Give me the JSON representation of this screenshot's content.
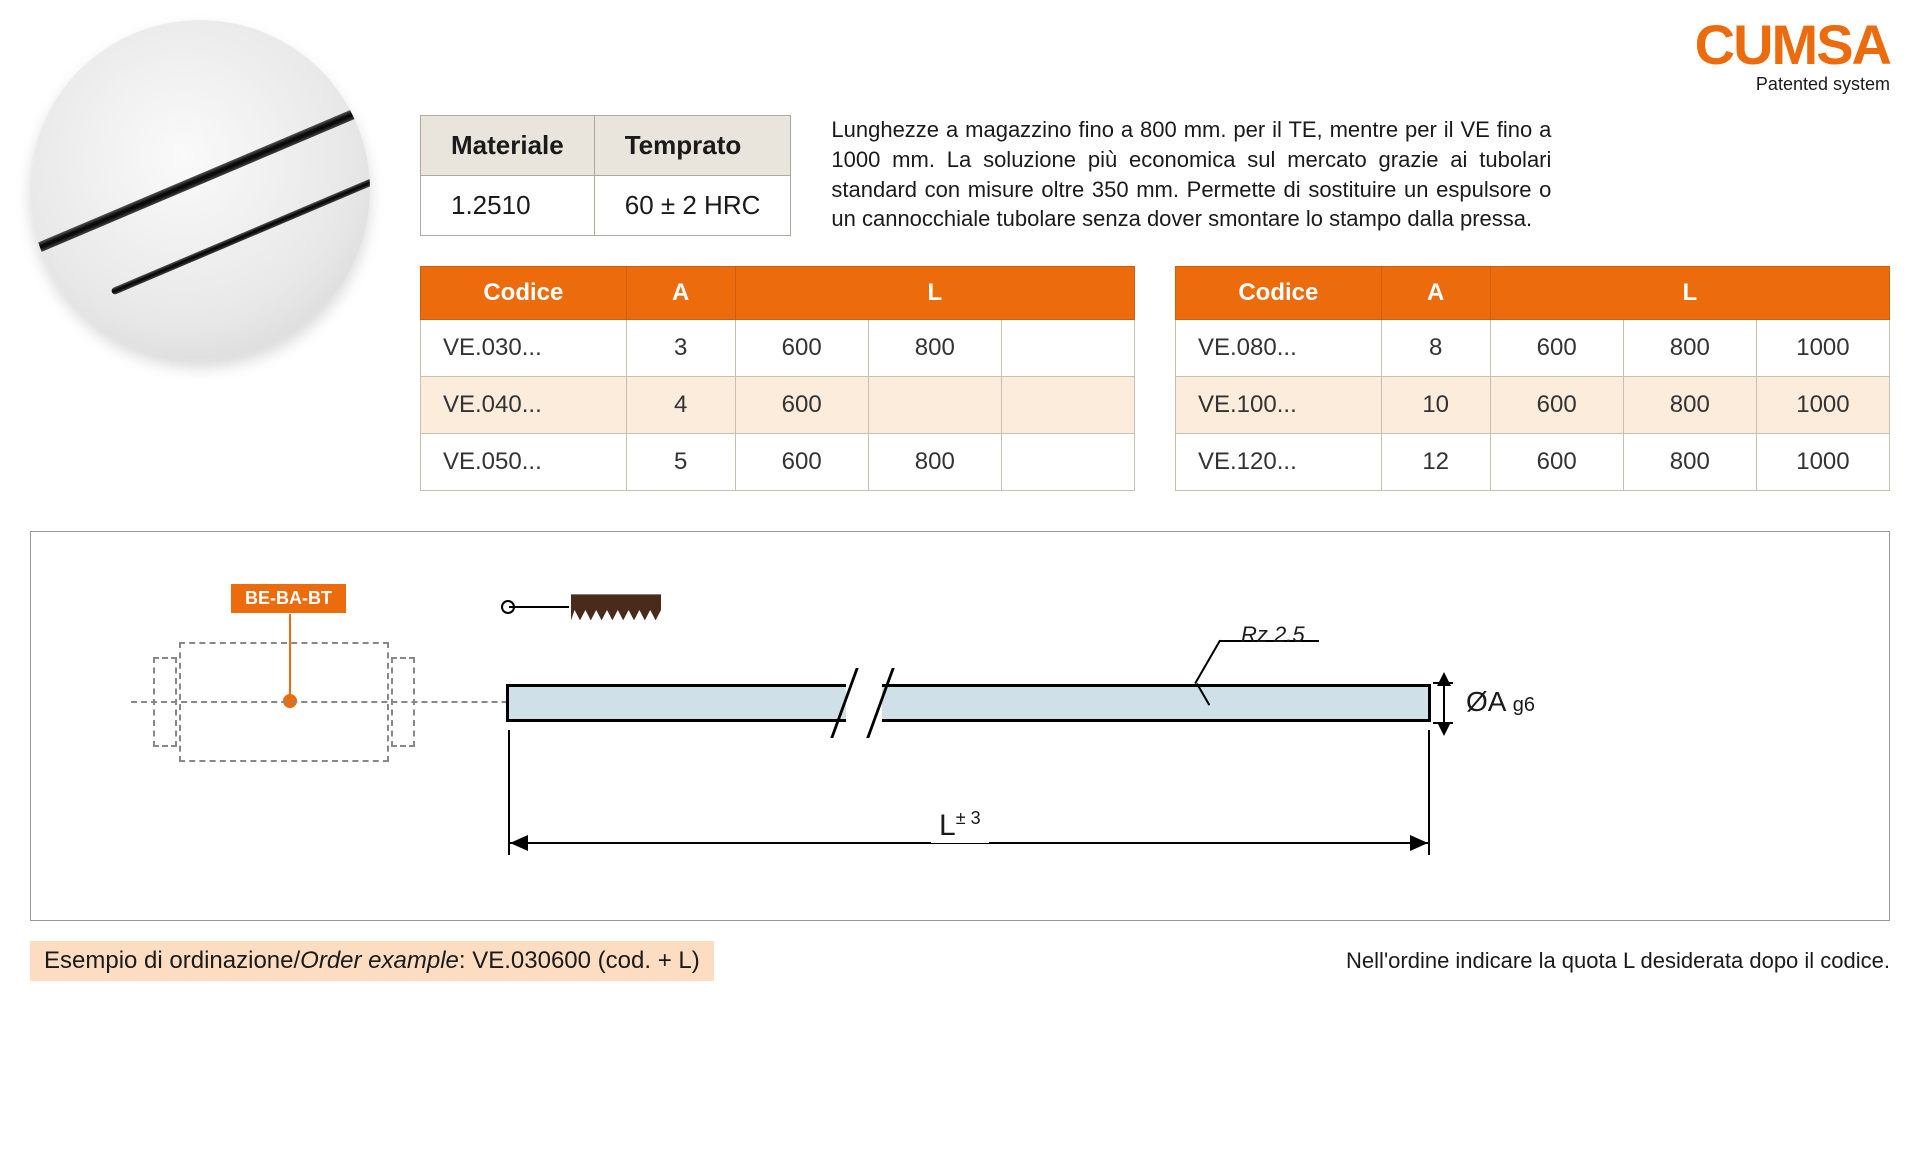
{
  "brand": {
    "logo": "CUMSA",
    "tagline": "Patented system"
  },
  "material_table": {
    "headers": [
      "Materiale",
      "Temprato"
    ],
    "row": [
      "1.2510",
      "60 ± 2 HRC"
    ]
  },
  "description": "Lunghezze a magazzino fino a 800 mm. per il TE, mentre per il VE fino a 1000 mm. La soluzione più economica sul mercato grazie ai tubolari standard con misure oltre 350 mm. Permette di sostituire un espulsore o un cannocchiale tubolare senza dover smontare lo stampo dalla pressa.",
  "table_headers": {
    "code": "Codice",
    "a": "A",
    "l": "L"
  },
  "table_left": {
    "rows": [
      {
        "code": "VE.030...",
        "a": "3",
        "l": [
          "600",
          "800",
          ""
        ]
      },
      {
        "code": "VE.040...",
        "a": "4",
        "l": [
          "600",
          "",
          ""
        ]
      },
      {
        "code": "VE.050...",
        "a": "5",
        "l": [
          "600",
          "800",
          ""
        ]
      }
    ]
  },
  "table_right": {
    "rows": [
      {
        "code": "VE.080...",
        "a": "8",
        "l": [
          "600",
          "800",
          "1000"
        ]
      },
      {
        "code": "VE.100...",
        "a": "10",
        "l": [
          "600",
          "800",
          "1000"
        ]
      },
      {
        "code": "VE.120...",
        "a": "12",
        "l": [
          "600",
          "800",
          "1000"
        ]
      }
    ]
  },
  "diagram": {
    "ref_label": "BE-BA-BT",
    "surface_finish": "Rz 2.5",
    "diameter_label": "ØA",
    "diameter_tol": "g6",
    "length_label": "L",
    "length_tol": "± 3"
  },
  "footer": {
    "order_prefix": "Esempio di ordinazione/",
    "order_italic": "Order example",
    "order_value": ": VE.030600 (cod. + L)",
    "note": "Nell'ordine indicare la quota L desiderata dopo il codice."
  },
  "colors": {
    "accent": "#eb6b0d",
    "alt_row": "#fcecdc",
    "material_header": "#e9e5dc",
    "rod_fill": "#d0e0e8",
    "order_bg": "#fcddc1"
  }
}
